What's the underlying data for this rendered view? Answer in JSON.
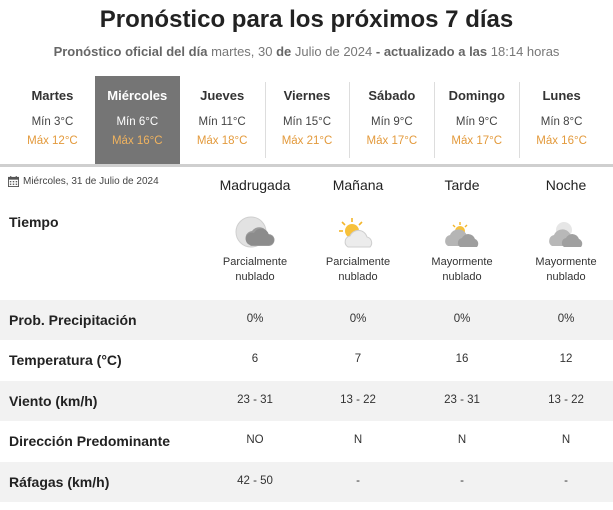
{
  "header": {
    "title": "Pronóstico para los próximos 7 días",
    "subtitle_prefix": "Pronóstico oficial del día",
    "subtitle_date": "martes, 30",
    "subtitle_de": "de",
    "subtitle_date2": "Julio de 2024",
    "subtitle_updated": "- actualizado a las",
    "subtitle_time": "18:14 horas"
  },
  "days": [
    {
      "name": "Martes",
      "min": "Mín 3°C",
      "max": "Máx 12°C"
    },
    {
      "name": "Miércoles",
      "min": "Mín 6°C",
      "max": "Máx 16°C"
    },
    {
      "name": "Jueves",
      "min": "Mín 11°C",
      "max": "Máx 18°C"
    },
    {
      "name": "Viernes",
      "min": "Mín 15°C",
      "max": "Máx 21°C"
    },
    {
      "name": "Sábado",
      "min": "Mín 9°C",
      "max": "Máx 17°C"
    },
    {
      "name": "Domingo",
      "min": "Mín 9°C",
      "max": "Máx 17°C"
    },
    {
      "name": "Lunes",
      "min": "Mín 8°C",
      "max": "Máx 16°C"
    }
  ],
  "selected_day_index": 1,
  "detail": {
    "date_label": "Miércoles, 31 de Julio de 2024",
    "periods": [
      "Madrugada",
      "Mañana",
      "Tarde",
      "Noche"
    ],
    "weather_label": "Tiempo",
    "weather": [
      {
        "icon": "partly-cloudy-night-icon",
        "desc": "Parcialmente nublado"
      },
      {
        "icon": "partly-cloudy-day-icon",
        "desc": "Parcialmente nublado"
      },
      {
        "icon": "mostly-cloudy-day-icon",
        "desc": "Mayormente nublado"
      },
      {
        "icon": "mostly-cloudy-night-icon",
        "desc": "Mayormente nublado"
      }
    ],
    "rows": [
      {
        "label": "Prob. Precipitación",
        "values": [
          "0%",
          "0%",
          "0%",
          "0%"
        ]
      },
      {
        "label": "Temperatura (°C)",
        "values": [
          "6",
          "7",
          "16",
          "12"
        ]
      },
      {
        "label": "Viento (km/h)",
        "values": [
          "23 - 31",
          "13 - 22",
          "23 - 31",
          "13 - 22"
        ]
      },
      {
        "label": "Dirección Predominante",
        "values": [
          "NO",
          "N",
          "N",
          "N"
        ]
      },
      {
        "label": "Ráfagas (km/h)",
        "values": [
          "42 - 50",
          "-",
          "-",
          "-"
        ]
      }
    ]
  },
  "colors": {
    "selected_day_bg": "#757575",
    "max_temp": "#e39a3c",
    "row_shade": "#f2f2f2"
  }
}
